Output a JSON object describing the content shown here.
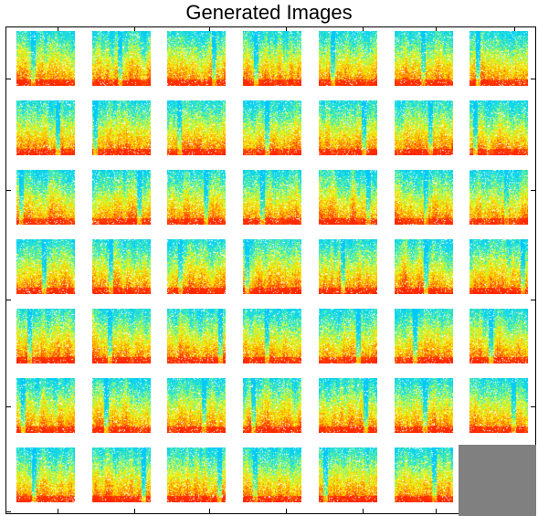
{
  "title": "Generated Images",
  "grid": {
    "rows": 7,
    "cols": 7,
    "filled": 48
  },
  "colors": {
    "background": "#ffffff",
    "empty_cell": "#808080",
    "spectrogram_map": [
      "#00ccff",
      "#33e6cc",
      "#ccff33",
      "#ffee00",
      "#ff9900",
      "#ff3300"
    ]
  }
}
